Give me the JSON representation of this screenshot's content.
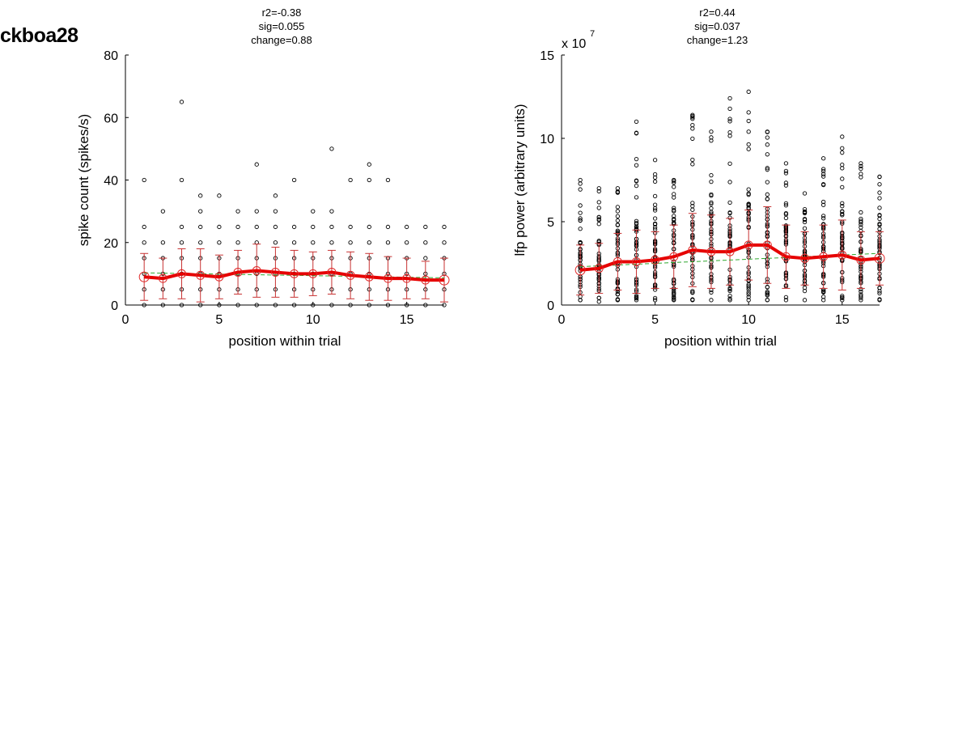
{
  "figure": {
    "label": "ckboa28"
  },
  "colors": {
    "mean": "#e60000",
    "errorbar": "#c83232",
    "fit": "#2ea82e",
    "points": "#000000",
    "mean_marker": "#e02828"
  },
  "chart_data": [
    {
      "type": "scatter",
      "title_lines": [
        "r2=-0.38",
        "sig=0.055",
        "change=0.88"
      ],
      "xlabel": "position within trial",
      "ylabel": "spike count (spikes/s)",
      "xlim": [
        0,
        17
      ],
      "ylim": [
        0,
        80
      ],
      "xticks": [
        0,
        5,
        10,
        15
      ],
      "yticks": [
        0,
        20,
        40,
        60,
        80
      ],
      "exponent_label": "",
      "grid": false,
      "x": [
        1,
        2,
        3,
        4,
        5,
        6,
        7,
        8,
        9,
        10,
        11,
        12,
        13,
        14,
        15,
        16,
        17
      ],
      "series": [
        {
          "name": "",
          "kind": "mean",
          "values": [
            9,
            8.5,
            10,
            9.5,
            9,
            10.5,
            11,
            10.5,
            10,
            10,
            10.5,
            9.5,
            9,
            8.5,
            8.5,
            8,
            8
          ]
        },
        {
          "name": "",
          "kind": "error",
          "values": [
            7.5,
            6.5,
            8,
            8.5,
            7,
            7,
            8.5,
            8,
            7.5,
            7,
            7,
            7.5,
            7.5,
            7,
            6.5,
            6,
            7
          ]
        },
        {
          "name": "",
          "kind": "fit",
          "values": [
            10.3,
            10.2,
            10.1,
            10,
            9.9,
            9.8,
            9.7,
            9.6,
            9.5,
            9.4,
            9.3,
            9.2,
            9.1,
            9,
            8.9,
            8.8,
            8.7
          ]
        }
      ],
      "points": [
        [
          0,
          5,
          10,
          15,
          20,
          25,
          40
        ],
        [
          0,
          5,
          10,
          15,
          20,
          30
        ],
        [
          0,
          5,
          10,
          15,
          20,
          25,
          40,
          65
        ],
        [
          0,
          5,
          10,
          15,
          20,
          25,
          30,
          35
        ],
        [
          0,
          5,
          10,
          15,
          20,
          25,
          35
        ],
        [
          0,
          5,
          10,
          15,
          20,
          25,
          30
        ],
        [
          0,
          5,
          10,
          15,
          20,
          25,
          30,
          45
        ],
        [
          0,
          5,
          10,
          15,
          20,
          25,
          30,
          35
        ],
        [
          0,
          5,
          10,
          15,
          20,
          25,
          40
        ],
        [
          0,
          5,
          10,
          15,
          20,
          25,
          30
        ],
        [
          0,
          5,
          10,
          15,
          20,
          25,
          30,
          50
        ],
        [
          0,
          5,
          10,
          15,
          20,
          25,
          40
        ],
        [
          0,
          5,
          10,
          15,
          20,
          25,
          40,
          45
        ],
        [
          0,
          5,
          10,
          15,
          20,
          25,
          40
        ],
        [
          0,
          5,
          10,
          15,
          20,
          25
        ],
        [
          0,
          5,
          10,
          15,
          20,
          25
        ],
        [
          0,
          5,
          10,
          15,
          20,
          25
        ]
      ]
    },
    {
      "type": "scatter",
      "title_lines": [
        "r2=0.44",
        "sig=0.037",
        "change=1.23"
      ],
      "xlabel": "position within trial",
      "ylabel": "lfp power (arbitrary units)",
      "xlim": [
        0,
        17
      ],
      "ylim": [
        0,
        15
      ],
      "xticks": [
        0,
        5,
        10,
        15
      ],
      "yticks": [
        0,
        5,
        10,
        15
      ],
      "exponent_label": "x 10",
      "exponent_power": "7",
      "grid": false,
      "x": [
        1,
        2,
        3,
        4,
        5,
        6,
        7,
        8,
        9,
        10,
        11,
        12,
        13,
        14,
        15,
        16,
        17
      ],
      "series": [
        {
          "name": "",
          "kind": "mean",
          "values": [
            2.1,
            2.2,
            2.6,
            2.6,
            2.7,
            2.9,
            3.3,
            3.2,
            3.2,
            3.6,
            3.6,
            2.9,
            2.8,
            2.9,
            3.0,
            2.7,
            2.8
          ]
        },
        {
          "name": "",
          "kind": "error",
          "values": [
            1.5,
            1.5,
            1.7,
            1.9,
            1.7,
            1.9,
            2.2,
            2.2,
            2.0,
            2.1,
            2.3,
            1.9,
            1.6,
            1.9,
            2.1,
            1.7,
            1.6
          ]
        },
        {
          "name": "",
          "kind": "fit",
          "values": [
            2.3,
            2.35,
            2.4,
            2.45,
            2.5,
            2.55,
            2.6,
            2.65,
            2.7,
            2.75,
            2.8,
            2.85,
            2.9,
            2.95,
            3.0,
            3.05,
            3.1
          ]
        }
      ],
      "points_max": [
        7.5,
        7.0,
        7.0,
        11.0,
        8.7,
        7.5,
        11.4,
        10.4,
        12.4,
        12.8,
        10.4,
        8.5,
        6.7,
        8.8,
        10.1,
        8.5,
        7.7
      ],
      "points_min": [
        0.3,
        0.2,
        0.3,
        0.3,
        0.3,
        0.3,
        0.3,
        0.3,
        0.3,
        0.3,
        0.3,
        0.3,
        0.3,
        0.3,
        0.3,
        0.3,
        0.3
      ]
    }
  ]
}
